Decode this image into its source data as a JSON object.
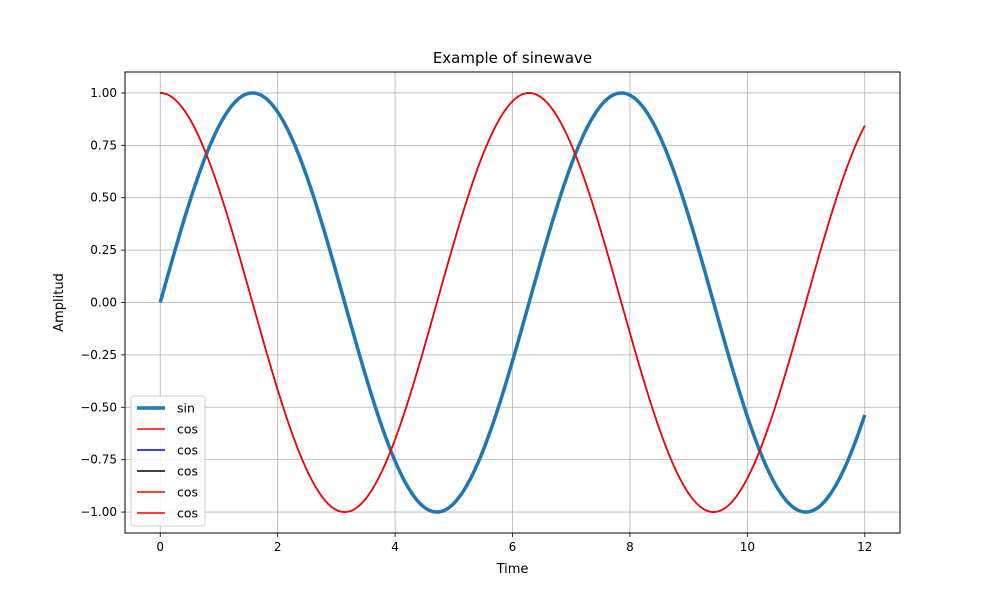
{
  "chart_data": {
    "type": "line",
    "title": "Example of sinewave",
    "xlabel": "Time",
    "ylabel": "Amplitud",
    "xlim": [
      -0.6,
      12.6
    ],
    "ylim": [
      -1.1,
      1.1
    ],
    "grid": true,
    "legend_position": "lower-left",
    "x_ticks": [
      0,
      2,
      4,
      6,
      8,
      10,
      12
    ],
    "y_ticks": [
      -1.0,
      -0.75,
      -0.5,
      -0.25,
      0.0,
      0.25,
      0.5,
      0.75,
      1.0
    ],
    "x_tick_labels": [
      "0",
      "2",
      "4",
      "6",
      "8",
      "10",
      "12"
    ],
    "y_tick_labels": [
      "−1.00",
      "−0.75",
      "−0.50",
      "−0.25",
      "0.00",
      "0.25",
      "0.50",
      "0.75",
      "1.00"
    ],
    "x_domain": [
      0,
      12
    ],
    "series": [
      {
        "name": "sin",
        "function": "sin",
        "color": "#1f77b4",
        "linewidth": 3.5
      },
      {
        "name": "cos",
        "function": "cos",
        "color": "#0000ff",
        "linewidth": 1.5
      },
      {
        "name": "cos",
        "function": "cos",
        "color": "#000000",
        "linewidth": 1.5
      },
      {
        "name": "cos",
        "function": "cos",
        "color": "#ff0000",
        "linewidth": 1.5
      },
      {
        "name": "cos",
        "function": "cos",
        "color": "#ff0000",
        "linewidth": 1.5
      },
      {
        "name": "cos",
        "function": "cos",
        "color": "#ff0000",
        "linewidth": 1.5
      }
    ],
    "legend_entries": [
      {
        "label": "sin",
        "color": "#1f77b4",
        "linewidth": 3.5
      },
      {
        "label": "cos",
        "color": "#ff0000",
        "linewidth": 1.5
      },
      {
        "label": "cos",
        "color": "#0000ff",
        "linewidth": 1.5
      },
      {
        "label": "cos",
        "color": "#000000",
        "linewidth": 1.5
      },
      {
        "label": "cos",
        "color": "#ff0000",
        "linewidth": 1.5
      },
      {
        "label": "cos",
        "color": "#ff0000",
        "linewidth": 1.5
      }
    ]
  }
}
